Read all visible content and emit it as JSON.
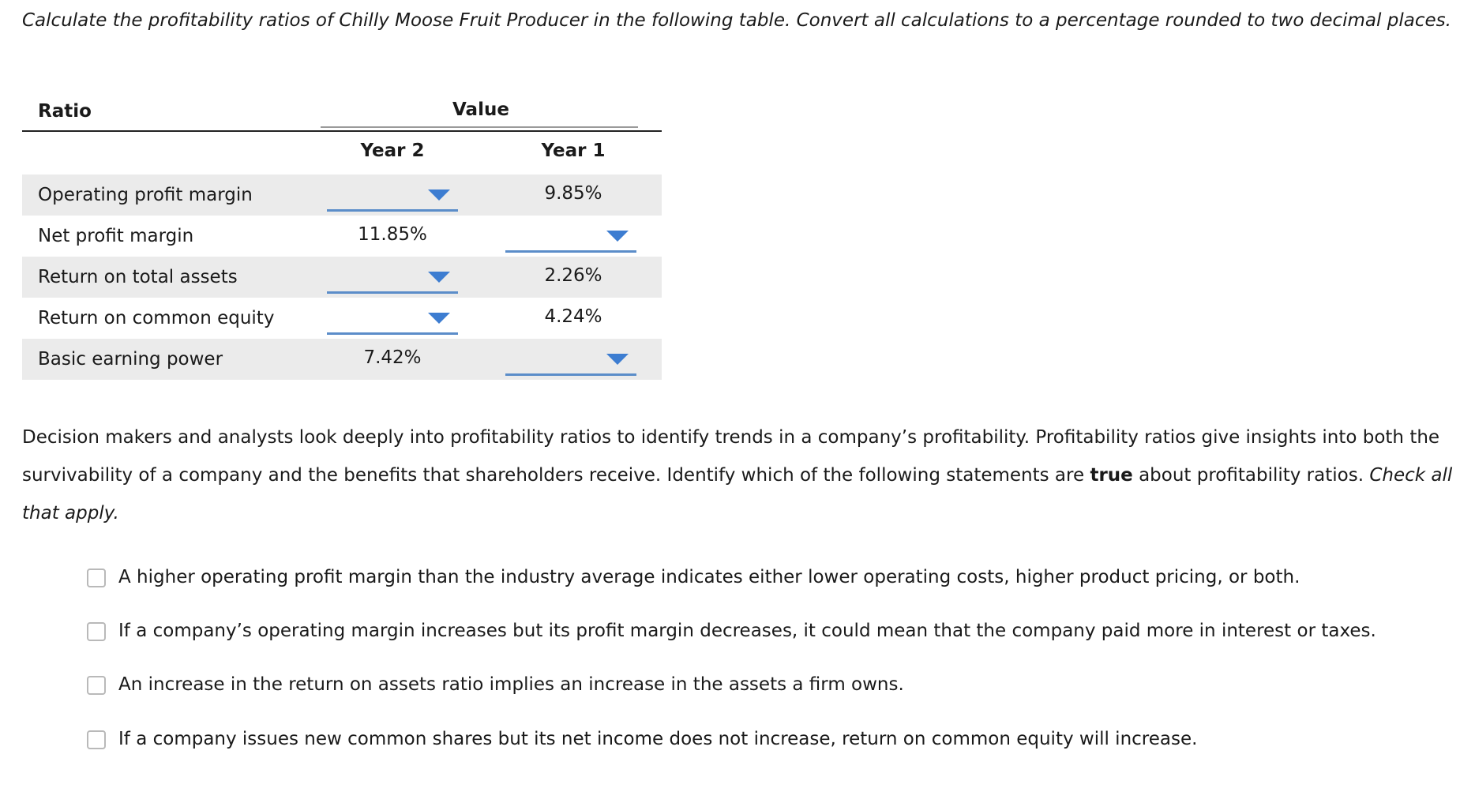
{
  "instructions": "Calculate the profitability ratios of Chilly Moose Fruit Producer in the following table. Convert all calculations to a percentage rounded to two decimal places.",
  "table": {
    "ratio_header": "Ratio",
    "value_header": "Value",
    "year2_header": "Year 2",
    "year1_header": "Year 1",
    "rows": [
      {
        "label": "Operating profit margin",
        "year2": "",
        "year1": "9.85%"
      },
      {
        "label": "Net profit margin",
        "year2": "11.85%",
        "year1": ""
      },
      {
        "label": "Return on total assets",
        "year2": "",
        "year1": "2.26%"
      },
      {
        "label": "Return on common equity",
        "year2": "",
        "year1": "4.24%"
      },
      {
        "label": "Basic earning power",
        "year2": "7.42%",
        "year1": ""
      }
    ]
  },
  "question": {
    "part1": "Decision makers and analysts look deeply into profitability ratios to identify trends in a company’s profitability. Profitability ratios give insights into both the survivability of a company and the benefits that shareholders receive. Identify which of the following statements are ",
    "emphasis": "true",
    "part2": " about profitability ratios. ",
    "instruction": "Check all that apply."
  },
  "options": [
    "A higher operating profit margin than the industry average indicates either lower operating costs, higher product pricing, or both.",
    "If a company’s operating margin increases but its profit margin decreases, it could mean that the company paid more in interest or taxes.",
    "An increase in the return on assets ratio implies an increase in the assets a firm owns.",
    "If a company issues new common shares but its net income does not increase, return on common equity will increase."
  ],
  "colors": {
    "row_shade": "#ebebeb",
    "dropdown_accent": "#3d7dd1"
  }
}
